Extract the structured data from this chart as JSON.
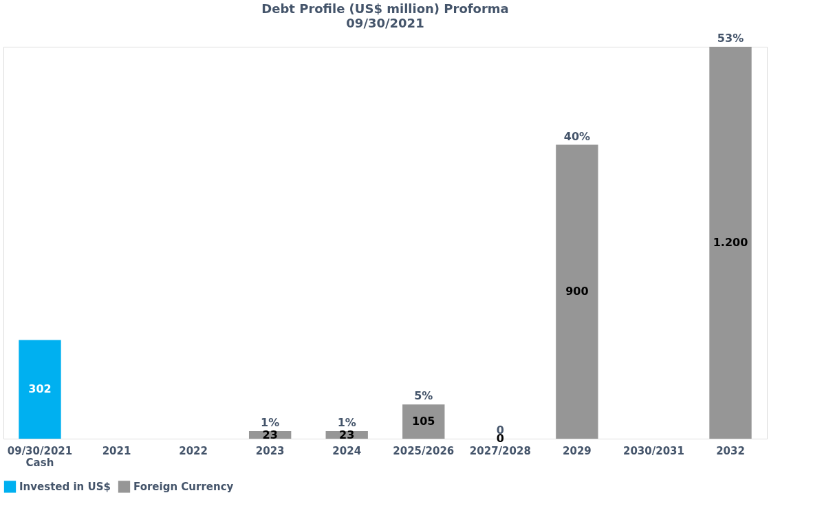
{
  "chart_data": {
    "type": "bar",
    "title": "Debt Profile (US$ million) Proforma",
    "subtitle": "09/30/2021",
    "categories": [
      "09/30/2021\nCash",
      "2021",
      "2022",
      "2023",
      "2024",
      "2025/2026",
      "2027/2028",
      "2029",
      "2030/2031",
      "2032"
    ],
    "series": [
      {
        "name": "Invested in US$",
        "color": "#00b0f0",
        "values": [
          302,
          null,
          null,
          null,
          null,
          null,
          null,
          null,
          null,
          null
        ],
        "value_labels": [
          "302",
          null,
          null,
          null,
          null,
          null,
          null,
          null,
          null,
          null
        ]
      },
      {
        "name": "Foreign Currency",
        "color": "#969696",
        "values": [
          null,
          null,
          null,
          23,
          23,
          105,
          0,
          900,
          null,
          1200
        ],
        "value_labels": [
          null,
          null,
          null,
          "23",
          "23",
          "105",
          "0",
          "900",
          null,
          "1.200"
        ]
      }
    ],
    "annotations": [
      {
        "text": "1%",
        "x": "2023",
        "y": 23
      },
      {
        "text": "1%",
        "x": "2024",
        "y": 23
      },
      {
        "text": "5%",
        "x": "2025/2026",
        "y": 105
      },
      {
        "text": "0",
        "x": "2027/2028",
        "y": 0
      },
      {
        "text": "40%",
        "x": "2029",
        "y": 900
      },
      {
        "text": "53%",
        "x": "2032",
        "y": 1200
      }
    ],
    "legend": "bottom",
    "grid": false
  }
}
